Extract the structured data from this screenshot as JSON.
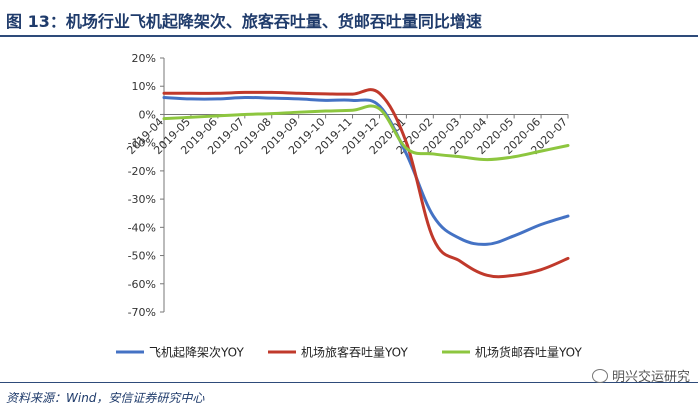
{
  "title": "图 13：机场行业飞机起降架次、旅客吞吐量、货邮吞吐量同比增速",
  "source": "资料来源：Wind，安信证券研究中心",
  "watermark": "明兴交运研究",
  "chart_data": {
    "type": "line",
    "categories": [
      "2019-04",
      "2019-05",
      "2019-06",
      "2019-07",
      "2019-08",
      "2019-09",
      "2019-10",
      "2019-11",
      "2019-12",
      "2020-01",
      "2020-02",
      "2020-03",
      "2020-04",
      "2020-05",
      "2020-06",
      "2020-07"
    ],
    "ylim": [
      -70,
      20
    ],
    "yticks": [
      "20%",
      "10%",
      "0%",
      "-10%",
      "-20%",
      "-30%",
      "-40%",
      "-50%",
      "-60%",
      "-70%"
    ],
    "series": [
      {
        "name": "飞机起降架次YOY",
        "color": "#4472c4",
        "values": [
          6,
          5.5,
          5.5,
          6,
          5.8,
          5.5,
          5,
          5,
          3,
          -14,
          -36,
          -44,
          -46,
          -43,
          -39,
          -36
        ]
      },
      {
        "name": "机场旅客吞吐量YOY",
        "color": "#c0392b",
        "values": [
          7.5,
          7.5,
          7.5,
          7.8,
          7.8,
          7.5,
          7.3,
          7.2,
          7.5,
          -10,
          -44,
          -52,
          -57,
          -57,
          -55,
          -51
        ]
      },
      {
        "name": "机场货邮吞吐量YOY",
        "color": "#8dc63f",
        "values": [
          -1.5,
          -1,
          -0.5,
          0,
          0.3,
          0.8,
          1.2,
          1.5,
          2,
          -12,
          -14,
          -15,
          -16,
          -15,
          -13,
          -11
        ]
      }
    ],
    "grid": false,
    "legend_position": "bottom"
  }
}
